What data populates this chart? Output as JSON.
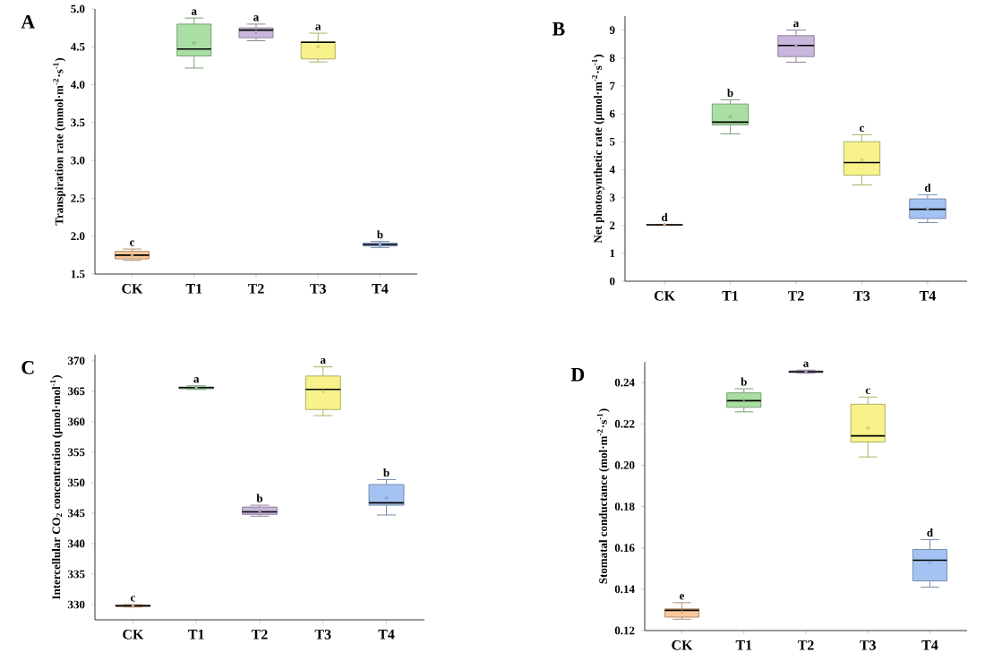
{
  "chart_data": [
    {
      "type": "box",
      "title": "A",
      "ylabel": "Transpiration rate (mmol·m$^{-2}$·s$^{-1}$)",
      "categories": [
        "CK",
        "T1",
        "T2",
        "T3",
        "T4"
      ],
      "colors": [
        "#f9c79a",
        "#a9dfa3",
        "#c9b6dc",
        "#f7f28a",
        "#a5c3f2"
      ],
      "ylim": [
        1.5,
        5.0
      ],
      "yticks": [
        1.5,
        {
          "value": 2.0,
          "label": "2.0"
        },
        2.5,
        {
          "value": 3.0,
          "label": "3.0"
        },
        3.5,
        {
          "value": 4.0,
          "label": "4.0"
        },
        4.5,
        {
          "value": 5.0,
          "label": "5.0"
        }
      ],
      "boxes": [
        {
          "low": 1.68,
          "q1": 1.7,
          "median": 1.75,
          "q3": 1.8,
          "high": 1.83,
          "mean": 1.75
        },
        {
          "low": 4.22,
          "q1": 4.38,
          "median": 4.47,
          "q3": 4.8,
          "high": 4.88,
          "mean": 4.55
        },
        {
          "low": 4.58,
          "q1": 4.62,
          "median": 4.72,
          "q3": 4.75,
          "high": 4.8,
          "mean": 4.7
        },
        {
          "low": 4.3,
          "q1": 4.34,
          "median": 4.56,
          "q3": 4.57,
          "high": 4.68,
          "mean": 4.5
        },
        {
          "low": 1.85,
          "q1": 1.87,
          "median": 1.89,
          "q3": 1.91,
          "high": 1.93,
          "mean": 1.89
        }
      ],
      "annotations": [
        "c",
        "a",
        "a",
        "a",
        "b"
      ]
    },
    {
      "type": "box",
      "title": "B",
      "ylabel": "Net photosynthetic rate (μmol·m$^{-2}$·s$^{-1}$)",
      "categories": [
        "CK",
        "T1",
        "T2",
        "T3",
        "T4"
      ],
      "colors": [
        "#f9c79a",
        "#a9dfa3",
        "#c9b6dc",
        "#f7f28a",
        "#a5c3f2"
      ],
      "ylim": [
        0,
        9.5
      ],
      "yticks": [
        0,
        1,
        2,
        3,
        4,
        5,
        6,
        7,
        8,
        9
      ],
      "boxes": [
        {
          "low": 2.0,
          "q1": 2.01,
          "median": 2.02,
          "q3": 2.03,
          "high": 2.04,
          "mean": 2.02
        },
        {
          "low": 5.28,
          "q1": 5.6,
          "median": 5.7,
          "q3": 6.35,
          "high": 6.5,
          "mean": 5.9
        },
        {
          "low": 7.85,
          "q1": 8.05,
          "median": 8.45,
          "q3": 8.8,
          "high": 9.0,
          "mean": 8.45
        },
        {
          "low": 3.45,
          "q1": 3.8,
          "median": 4.25,
          "q3": 5.0,
          "high": 5.25,
          "mean": 4.35
        },
        {
          "low": 2.1,
          "q1": 2.25,
          "median": 2.58,
          "q3": 2.95,
          "high": 3.1,
          "mean": 2.6
        }
      ],
      "annotations": [
        "d",
        "b",
        "a",
        "c",
        "d"
      ]
    },
    {
      "type": "box",
      "title": "C",
      "ylabel": "Intercellular CO$_{2}$ concentration (μmol·mol$^{-1}$)",
      "categories": [
        "CK",
        "T1",
        "T2",
        "T3",
        "T4"
      ],
      "colors": [
        "#f9c79a",
        "#a9dfa3",
        "#c9b6dc",
        "#f7f28a",
        "#a5c3f2"
      ],
      "ylim": [
        327.5,
        371
      ],
      "yticks": [
        330,
        335,
        340,
        345,
        350,
        355,
        360,
        365,
        370
      ],
      "boxes": [
        {
          "low": 329.6,
          "q1": 329.7,
          "median": 329.8,
          "q3": 329.9,
          "high": 330.0,
          "mean": 329.8
        },
        {
          "low": 365.3,
          "q1": 365.4,
          "median": 365.6,
          "q3": 365.7,
          "high": 365.9,
          "mean": 365.6
        },
        {
          "low": 344.5,
          "q1": 344.8,
          "median": 345.2,
          "q3": 346.0,
          "high": 346.3,
          "mean": 345.3
        },
        {
          "low": 361.0,
          "q1": 362.0,
          "median": 365.3,
          "q3": 367.5,
          "high": 369.0,
          "mean": 365.0
        },
        {
          "low": 344.7,
          "q1": 346.3,
          "median": 346.7,
          "q3": 349.7,
          "high": 350.5,
          "mean": 347.5
        }
      ],
      "annotations": [
        "c",
        "a",
        "b",
        "a",
        "b"
      ]
    },
    {
      "type": "box",
      "title": "D",
      "ylabel": "Stomatal conductance (mol·m$^{-2}$·s$^{-1}$)",
      "categories": [
        "CK",
        "T1",
        "T2",
        "T3",
        "T4"
      ],
      "colors": [
        "#f9c79a",
        "#a9dfa3",
        "#c9b6dc",
        "#f7f28a",
        "#a5c3f2"
      ],
      "ylim": [
        0.12,
        0.25
      ],
      "yticks": [
        0.12,
        0.14,
        0.16,
        0.18,
        {
          "value": 0.2,
          "label": "0.20"
        },
        0.22,
        0.24
      ],
      "boxes": [
        {
          "low": 0.1255,
          "q1": 0.1265,
          "median": 0.1298,
          "q3": 0.1305,
          "high": 0.1335,
          "mean": 0.129
        },
        {
          "low": 0.2258,
          "q1": 0.228,
          "median": 0.2312,
          "q3": 0.235,
          "high": 0.237,
          "mean": 0.2318
        },
        {
          "low": 0.2445,
          "q1": 0.2448,
          "median": 0.2452,
          "q3": 0.2456,
          "high": 0.246,
          "mean": 0.2452
        },
        {
          "low": 0.204,
          "q1": 0.2112,
          "median": 0.2142,
          "q3": 0.2295,
          "high": 0.233,
          "mean": 0.218
        },
        {
          "low": 0.141,
          "q1": 0.144,
          "median": 0.154,
          "q3": 0.1592,
          "high": 0.164,
          "mean": 0.153
        }
      ],
      "annotations": [
        "e",
        "b",
        "a",
        "c",
        "d"
      ]
    }
  ]
}
